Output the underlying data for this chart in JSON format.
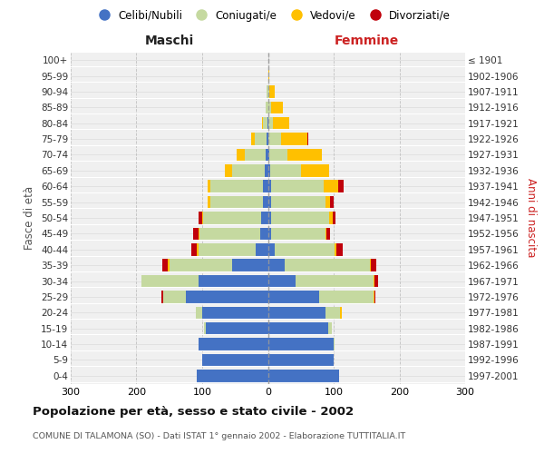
{
  "age_groups": [
    "0-4",
    "5-9",
    "10-14",
    "15-19",
    "20-24",
    "25-29",
    "30-34",
    "35-39",
    "40-44",
    "45-49",
    "50-54",
    "55-59",
    "60-64",
    "65-69",
    "70-74",
    "75-79",
    "80-84",
    "85-89",
    "90-94",
    "95-99",
    "100+"
  ],
  "birth_years": [
    "1997-2001",
    "1992-1996",
    "1987-1991",
    "1982-1986",
    "1977-1981",
    "1972-1976",
    "1967-1971",
    "1962-1966",
    "1957-1961",
    "1952-1956",
    "1947-1951",
    "1942-1946",
    "1937-1941",
    "1932-1936",
    "1927-1931",
    "1922-1926",
    "1917-1921",
    "1912-1916",
    "1907-1911",
    "1902-1906",
    "≤ 1901"
  ],
  "maschi_celibi": [
    108,
    100,
    105,
    95,
    100,
    125,
    105,
    55,
    18,
    12,
    10,
    8,
    7,
    5,
    3,
    2,
    1,
    0,
    0,
    0,
    0
  ],
  "maschi_coniugati": [
    0,
    0,
    0,
    2,
    10,
    35,
    88,
    95,
    88,
    92,
    88,
    80,
    80,
    50,
    32,
    18,
    6,
    4,
    2,
    0,
    0
  ],
  "maschi_vedovi": [
    0,
    0,
    0,
    0,
    0,
    0,
    0,
    2,
    2,
    2,
    2,
    4,
    5,
    10,
    12,
    6,
    2,
    0,
    0,
    0,
    0
  ],
  "maschi_divorziati": [
    0,
    0,
    0,
    0,
    0,
    2,
    0,
    8,
    8,
    8,
    6,
    0,
    0,
    0,
    0,
    0,
    0,
    0,
    0,
    0,
    0
  ],
  "femmine_nubili": [
    108,
    100,
    100,
    92,
    88,
    78,
    42,
    25,
    10,
    5,
    5,
    5,
    5,
    3,
    2,
    0,
    0,
    0,
    0,
    0,
    0
  ],
  "femmine_coniugate": [
    0,
    0,
    2,
    5,
    22,
    82,
    118,
    130,
    92,
    82,
    88,
    82,
    80,
    48,
    28,
    20,
    8,
    5,
    2,
    0,
    0
  ],
  "femmine_vedove": [
    0,
    0,
    0,
    0,
    2,
    2,
    2,
    2,
    2,
    2,
    5,
    8,
    22,
    42,
    52,
    40,
    25,
    18,
    8,
    2,
    0
  ],
  "femmine_divorziate": [
    0,
    0,
    0,
    0,
    0,
    2,
    5,
    8,
    10,
    5,
    5,
    5,
    8,
    0,
    0,
    2,
    0,
    0,
    0,
    0,
    0
  ],
  "color_celibi": "#4472c4",
  "color_coniugati": "#c5d9a0",
  "color_vedovi": "#ffc000",
  "color_divorziati": "#c0000b",
  "title": "Popolazione per età, sesso e stato civile - 2002",
  "subtitle": "COMUNE DI TALAMONA (SO) - Dati ISTAT 1° gennaio 2002 - Elaborazione TUTTITALIA.IT",
  "label_maschi": "Maschi",
  "label_femmine": "Femmine",
  "ylabel_left": "Fasce di età",
  "ylabel_right": "Anni di nascita",
  "xlim": 300,
  "legend_labels": [
    "Celibi/Nubili",
    "Coniugati/e",
    "Vedovi/e",
    "Divorziati/e"
  ],
  "bg_color": "#ffffff",
  "plot_bg": "#f0f0f0"
}
